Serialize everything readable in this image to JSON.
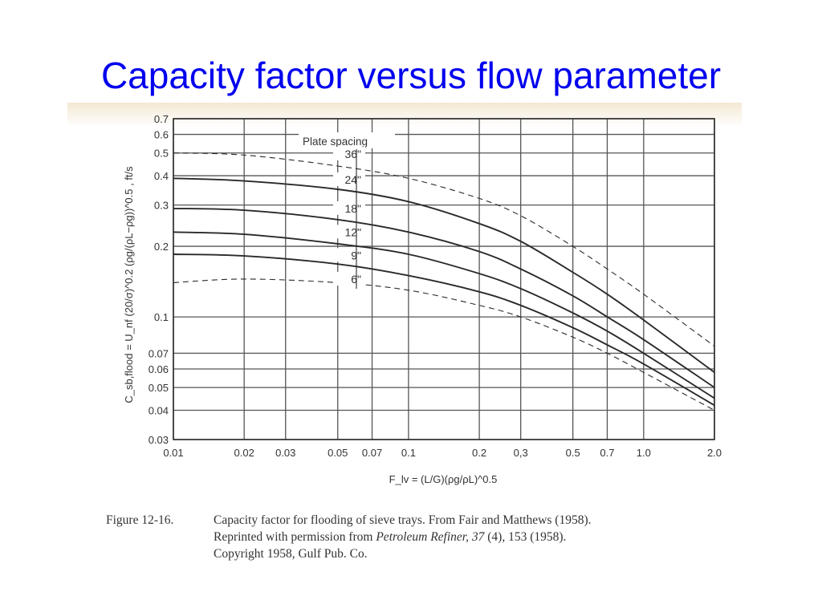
{
  "slide": {
    "title": "Capacity factor versus flow parameter"
  },
  "caption": {
    "label": "Figure 12-16.",
    "line1": "Capacity factor for flooding of sieve trays.  From Fair and Matthews (1958).",
    "line2_pre": "Reprinted with permission from ",
    "line2_italic": "Petroleum Refiner, 37",
    "line2_post": " (4), 153 (1958).",
    "line3": "Copyright 1958, Gulf Pub. Co."
  },
  "chart_data": {
    "type": "line",
    "x_scale": "log",
    "y_scale": "log",
    "xlim": [
      0.01,
      2.0
    ],
    "ylim": [
      0.03,
      0.7
    ],
    "grid": true,
    "x_ticks": [
      0.01,
      0.02,
      0.03,
      0.05,
      0.07,
      0.1,
      0.2,
      0.3,
      0.5,
      0.7,
      1.0,
      2.0
    ],
    "x_tick_labels": [
      "0.01",
      "0.02",
      "0.03",
      "0.05",
      "0.07",
      "0.1",
      "0.2",
      "0,3",
      "0.5",
      "0.7",
      "1.0",
      "2.0"
    ],
    "y_ticks": [
      0.03,
      0.04,
      0.05,
      0.06,
      0.07,
      0.1,
      0.2,
      0.3,
      0.4,
      0.5,
      0.6,
      0.7
    ],
    "y_tick_labels": [
      "0.03",
      "0.04",
      "0.05",
      "0.06",
      "0.07",
      "0.1",
      "0.2",
      "0.3",
      "0.4",
      "0.5",
      "0.6",
      "0.7"
    ],
    "x_label": "F_lv = (L/G)(ρg/ρL)^0.5",
    "y_label": "C_sb,flood = U_nf (20/σ)^0.2 (ρg/(ρL−ρg))^0.5 , ft/s",
    "legend_title": "Plate spacing",
    "series": [
      {
        "name": "36\"",
        "dashed": true,
        "x": [
          0.01,
          0.02,
          0.05,
          0.1,
          0.2,
          0.3,
          0.5,
          0.7,
          1.0,
          2.0
        ],
        "y": [
          0.5,
          0.49,
          0.44,
          0.39,
          0.32,
          0.27,
          0.2,
          0.16,
          0.125,
          0.075
        ]
      },
      {
        "name": "24\"",
        "dashed": false,
        "x": [
          0.01,
          0.02,
          0.05,
          0.1,
          0.2,
          0.3,
          0.5,
          0.7,
          1.0,
          2.0
        ],
        "y": [
          0.39,
          0.38,
          0.35,
          0.31,
          0.25,
          0.21,
          0.155,
          0.125,
          0.097,
          0.058
        ]
      },
      {
        "name": "18\"",
        "dashed": false,
        "x": [
          0.01,
          0.02,
          0.05,
          0.1,
          0.2,
          0.3,
          0.5,
          0.7,
          1.0,
          2.0
        ],
        "y": [
          0.29,
          0.285,
          0.26,
          0.23,
          0.19,
          0.16,
          0.123,
          0.1,
          0.08,
          0.05
        ]
      },
      {
        "name": "12\"",
        "dashed": false,
        "x": [
          0.01,
          0.02,
          0.05,
          0.1,
          0.2,
          0.3,
          0.5,
          0.7,
          1.0,
          2.0
        ],
        "y": [
          0.23,
          0.225,
          0.205,
          0.185,
          0.153,
          0.132,
          0.104,
          0.087,
          0.07,
          0.045
        ]
      },
      {
        "name": "9\"",
        "dashed": false,
        "x": [
          0.01,
          0.02,
          0.05,
          0.1,
          0.2,
          0.3,
          0.5,
          0.7,
          1.0,
          2.0
        ],
        "y": [
          0.185,
          0.182,
          0.168,
          0.15,
          0.128,
          0.112,
          0.09,
          0.076,
          0.063,
          0.042
        ]
      },
      {
        "name": "6\"",
        "dashed": true,
        "x": [
          0.01,
          0.02,
          0.05,
          0.1,
          0.2,
          0.3,
          0.5,
          0.7,
          1.0,
          2.0
        ],
        "y": [
          0.14,
          0.145,
          0.14,
          0.13,
          0.112,
          0.1,
          0.082,
          0.07,
          0.058,
          0.04
        ]
      }
    ]
  }
}
